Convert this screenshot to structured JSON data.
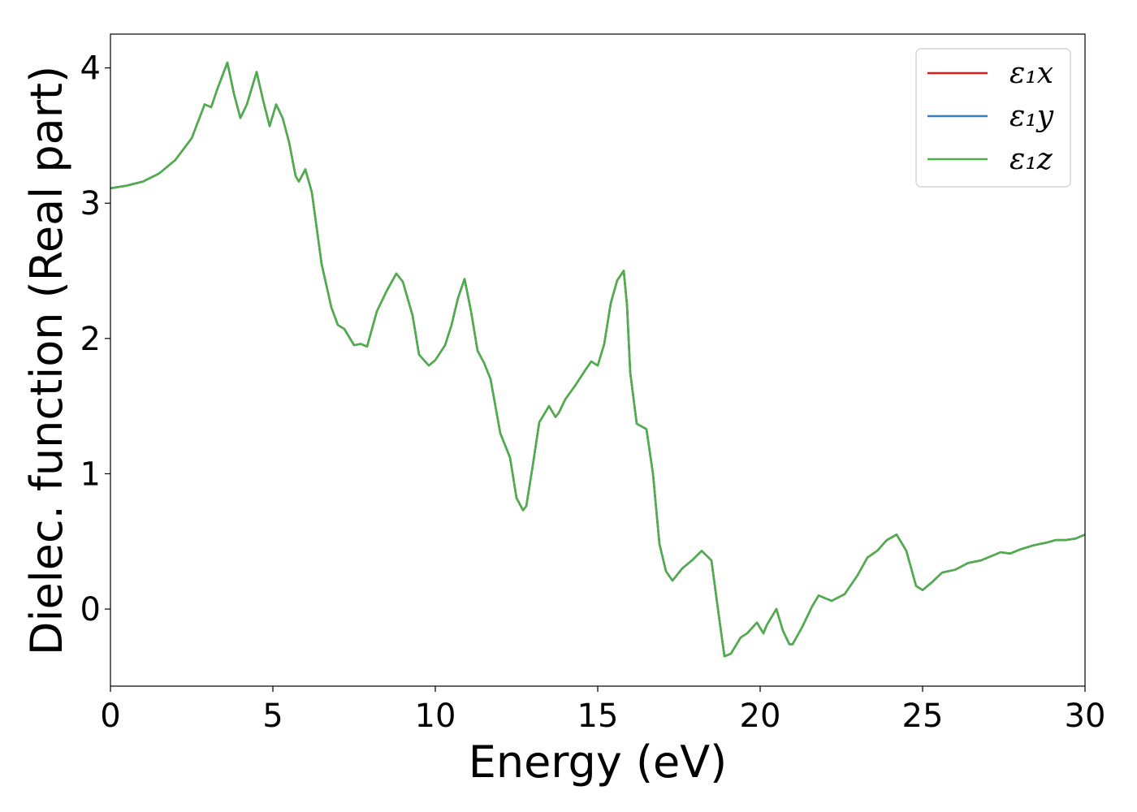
{
  "chart_data": {
    "type": "line",
    "title": "",
    "xlabel": "Energy (eV)",
    "ylabel": "Dielec. function (Real part)",
    "xlim": [
      0,
      30
    ],
    "ylim": [
      -0.57,
      4.25
    ],
    "xticks": [
      0,
      5,
      10,
      15,
      20,
      25,
      30
    ],
    "yticks": [
      0,
      1,
      2,
      3,
      4
    ],
    "grid": false,
    "legend_position": "top-right",
    "x": [
      0,
      0.5,
      1.0,
      1.5,
      2.0,
      2.5,
      2.9,
      3.1,
      3.3,
      3.6,
      3.8,
      4.0,
      4.2,
      4.5,
      4.7,
      4.9,
      5.1,
      5.3,
      5.5,
      5.7,
      5.8,
      6.0,
      6.2,
      6.5,
      6.8,
      7.0,
      7.2,
      7.5,
      7.7,
      7.9,
      8.2,
      8.5,
      8.8,
      9.0,
      9.3,
      9.5,
      9.8,
      10.0,
      10.3,
      10.5,
      10.7,
      10.9,
      11.1,
      11.3,
      11.5,
      11.7,
      12.0,
      12.3,
      12.5,
      12.7,
      12.8,
      13.0,
      13.2,
      13.5,
      13.7,
      13.8,
      14.0,
      14.3,
      14.6,
      14.8,
      15.0,
      15.2,
      15.4,
      15.6,
      15.8,
      15.9,
      16.0,
      16.2,
      16.5,
      16.7,
      16.9,
      17.1,
      17.3,
      17.6,
      17.9,
      18.2,
      18.5,
      18.7,
      18.9,
      19.1,
      19.4,
      19.6,
      19.9,
      20.1,
      20.2,
      20.5,
      20.7,
      20.9,
      21.0,
      21.3,
      21.6,
      21.8,
      22.2,
      22.6,
      23.0,
      23.3,
      23.6,
      23.9,
      24.2,
      24.5,
      24.8,
      25.0,
      25.3,
      25.6,
      26.0,
      26.4,
      26.8,
      27.1,
      27.4,
      27.7,
      28.0,
      28.4,
      28.8,
      29.1,
      29.4,
      29.7,
      30.0
    ],
    "series": [
      {
        "name": "ε₁x",
        "color": "#e41a1c",
        "y": [
          3.11,
          3.13,
          3.16,
          3.22,
          3.32,
          3.48,
          3.73,
          3.71,
          3.85,
          4.04,
          3.81,
          3.63,
          3.73,
          3.97,
          3.76,
          3.57,
          3.73,
          3.63,
          3.45,
          3.2,
          3.16,
          3.25,
          3.08,
          2.55,
          2.23,
          2.1,
          2.07,
          1.95,
          1.96,
          1.94,
          2.2,
          2.35,
          2.48,
          2.42,
          2.17,
          1.88,
          1.8,
          1.84,
          1.95,
          2.1,
          2.3,
          2.44,
          2.2,
          1.91,
          1.82,
          1.7,
          1.3,
          1.12,
          0.82,
          0.73,
          0.76,
          1.06,
          1.38,
          1.5,
          1.42,
          1.45,
          1.55,
          1.65,
          1.76,
          1.83,
          1.8,
          1.96,
          2.26,
          2.43,
          2.5,
          2.25,
          1.75,
          1.37,
          1.33,
          1.0,
          0.48,
          0.28,
          0.21,
          0.3,
          0.36,
          0.43,
          0.36,
          0.0,
          -0.35,
          -0.33,
          -0.21,
          -0.18,
          -0.1,
          -0.18,
          -0.12,
          0.0,
          -0.16,
          -0.26,
          -0.26,
          -0.13,
          0.02,
          0.1,
          0.06,
          0.11,
          0.25,
          0.38,
          0.43,
          0.51,
          0.55,
          0.43,
          0.17,
          0.14,
          0.2,
          0.27,
          0.29,
          0.34,
          0.36,
          0.39,
          0.42,
          0.41,
          0.44,
          0.47,
          0.49,
          0.51,
          0.51,
          0.52,
          0.55
        ]
      },
      {
        "name": "ε₁y",
        "color": "#377eb8",
        "y": [
          3.11,
          3.13,
          3.16,
          3.22,
          3.32,
          3.48,
          3.73,
          3.71,
          3.85,
          4.04,
          3.81,
          3.63,
          3.73,
          3.97,
          3.76,
          3.57,
          3.73,
          3.63,
          3.45,
          3.2,
          3.16,
          3.25,
          3.08,
          2.55,
          2.23,
          2.1,
          2.07,
          1.95,
          1.96,
          1.94,
          2.2,
          2.35,
          2.48,
          2.42,
          2.17,
          1.88,
          1.8,
          1.84,
          1.95,
          2.1,
          2.3,
          2.44,
          2.2,
          1.91,
          1.82,
          1.7,
          1.3,
          1.12,
          0.82,
          0.73,
          0.76,
          1.06,
          1.38,
          1.5,
          1.42,
          1.45,
          1.55,
          1.65,
          1.76,
          1.83,
          1.8,
          1.96,
          2.26,
          2.43,
          2.5,
          2.25,
          1.75,
          1.37,
          1.33,
          1.0,
          0.48,
          0.28,
          0.21,
          0.3,
          0.36,
          0.43,
          0.36,
          0.0,
          -0.35,
          -0.33,
          -0.21,
          -0.18,
          -0.1,
          -0.18,
          -0.12,
          0.0,
          -0.16,
          -0.26,
          -0.26,
          -0.13,
          0.02,
          0.1,
          0.06,
          0.11,
          0.25,
          0.38,
          0.43,
          0.51,
          0.55,
          0.43,
          0.17,
          0.14,
          0.2,
          0.27,
          0.29,
          0.34,
          0.36,
          0.39,
          0.42,
          0.41,
          0.44,
          0.47,
          0.49,
          0.51,
          0.51,
          0.52,
          0.55
        ]
      },
      {
        "name": "ε₁z",
        "color": "#4daf4a",
        "y": [
          3.11,
          3.13,
          3.16,
          3.22,
          3.32,
          3.48,
          3.73,
          3.71,
          3.85,
          4.04,
          3.81,
          3.63,
          3.73,
          3.97,
          3.76,
          3.57,
          3.73,
          3.63,
          3.45,
          3.2,
          3.16,
          3.25,
          3.08,
          2.55,
          2.23,
          2.1,
          2.07,
          1.95,
          1.96,
          1.94,
          2.2,
          2.35,
          2.48,
          2.42,
          2.17,
          1.88,
          1.8,
          1.84,
          1.95,
          2.1,
          2.3,
          2.44,
          2.2,
          1.91,
          1.82,
          1.7,
          1.3,
          1.12,
          0.82,
          0.73,
          0.76,
          1.06,
          1.38,
          1.5,
          1.42,
          1.45,
          1.55,
          1.65,
          1.76,
          1.83,
          1.8,
          1.96,
          2.26,
          2.43,
          2.5,
          2.25,
          1.75,
          1.37,
          1.33,
          1.0,
          0.48,
          0.28,
          0.21,
          0.3,
          0.36,
          0.43,
          0.36,
          0.0,
          -0.35,
          -0.33,
          -0.21,
          -0.18,
          -0.1,
          -0.18,
          -0.12,
          0.0,
          -0.16,
          -0.26,
          -0.26,
          -0.13,
          0.02,
          0.1,
          0.06,
          0.11,
          0.25,
          0.38,
          0.43,
          0.51,
          0.55,
          0.43,
          0.17,
          0.14,
          0.2,
          0.27,
          0.29,
          0.34,
          0.36,
          0.39,
          0.42,
          0.41,
          0.44,
          0.47,
          0.49,
          0.51,
          0.51,
          0.52,
          0.55
        ]
      }
    ]
  }
}
